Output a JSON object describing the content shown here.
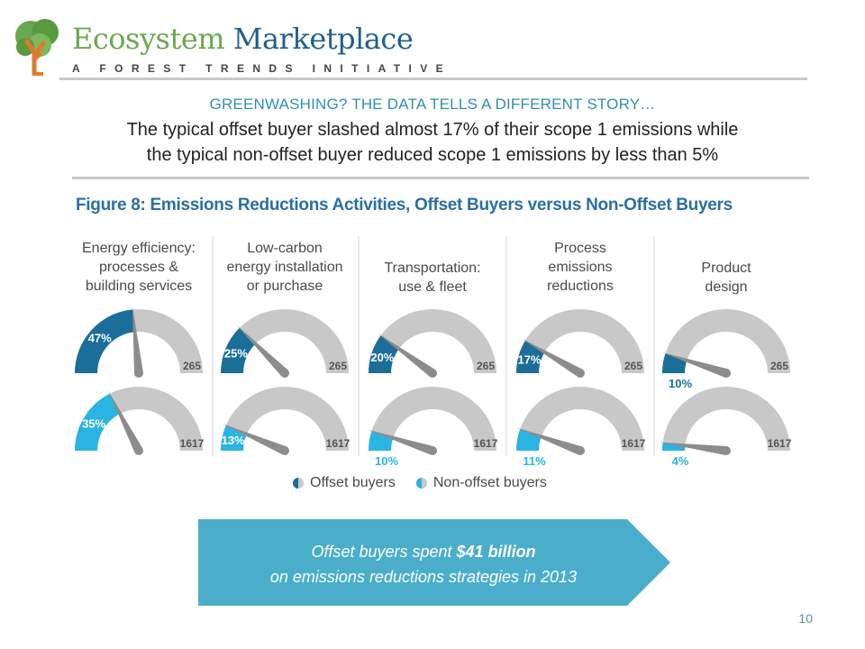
{
  "brand": {
    "name_part1": "Ecosystem",
    "name_part2": "Marketplace",
    "tagline": "A FOREST TRENDS INITIATIVE"
  },
  "kicker": "GREENWASHING? THE DATA TELLS A DIFFERENT STORY…",
  "headline_line1": "The typical offset buyer slashed almost 17% of their scope 1 emissions while",
  "headline_line2": "the typical non-offset buyer reduced scope 1 emissions by less than 5%",
  "callout": {
    "line1_prefix": "Offset buyers spent",
    "line1_amount": "$41 billion",
    "line2": "on emissions reductions strategies in 2013"
  },
  "page_number": "10",
  "colors": {
    "offset": "#1a6e99",
    "non_offset": "#29b4e2",
    "gauge_bg": "#c8c8c8",
    "needle": "#8c8c8c",
    "callout": "#4aaecb"
  },
  "chart_data": {
    "type": "gauge",
    "title": "Figure 8: Emissions Reductions Activities, Offset Buyers versus Non-Offset Buyers",
    "categories": [
      [
        "Energy efficiency:",
        "processes &",
        "building services"
      ],
      [
        "Low-carbon",
        "energy installation",
        "or purchase"
      ],
      [
        "Transportation:",
        "use & fleet"
      ],
      [
        "Process",
        "emissions",
        "reductions"
      ],
      [
        "Product",
        "design"
      ]
    ],
    "series": [
      {
        "name": "Offset buyers",
        "total": "265",
        "values": [
          47,
          25,
          20,
          17,
          10
        ]
      },
      {
        "name": "Non-offset buyers",
        "total": "1617",
        "values": [
          35,
          13,
          10,
          11,
          4
        ]
      }
    ],
    "unit": "%",
    "legend_position": "bottom"
  }
}
